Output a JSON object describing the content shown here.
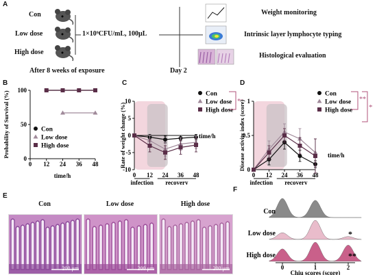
{
  "panel_a": {
    "label": "A",
    "groups": [
      "Con",
      "Low dose",
      "High dose"
    ],
    "dose_text": "1×10⁹CFU/mL, 100μL",
    "exposure_text": "After 8 weeks of exposure",
    "day_text": "Day 2",
    "assays": [
      "Weight monitoring",
      "Intrinsic layer lymphocyte typing",
      "Histological evaluation"
    ]
  },
  "panel_b": {
    "label": "B"
  },
  "panel_c": {
    "label": "C",
    "phase_labels": [
      "infection",
      "recovery"
    ]
  },
  "panel_d": {
    "label": "D",
    "phase_labels": [
      "infection",
      "recovery"
    ]
  },
  "panel_e": {
    "label": "E",
    "titles": [
      "Con",
      "Low dose",
      "High dose"
    ],
    "scale_text": "200 μm"
  },
  "panel_f": {
    "label": "F",
    "groups": [
      "Con",
      "Low dose",
      "High dose"
    ],
    "sig": [
      "",
      "*",
      "**"
    ]
  },
  "colors": {
    "con": "#111111",
    "low": "#a08a9a",
    "high": "#5a2e48",
    "infection_band": "#f3d6de",
    "recovery_band": "#c9c2c6",
    "sig_line": "#b0527a",
    "ridge_con": "#8a8a8a",
    "ridge_low": "#e9bccb",
    "ridge_high": "#c9608a"
  },
  "chart_data": [
    {
      "id": "B",
      "type": "line",
      "xlabel": "time/h",
      "ylabel": "Probability of Survival (%)",
      "xlim": [
        0,
        48
      ],
      "ylim": [
        0,
        100
      ],
      "xticks": [
        0,
        12,
        24,
        36,
        48
      ],
      "yticks": [
        0,
        50,
        100
      ],
      "legend": "bottom-left",
      "series": [
        {
          "name": "Con",
          "x": [
            12,
            24,
            36,
            48
          ],
          "y": [
            100,
            100,
            100,
            100
          ]
        },
        {
          "name": "Low dose",
          "x": [
            24,
            48
          ],
          "y": [
            67,
            67
          ]
        },
        {
          "name": "High dose",
          "x": [
            12,
            24,
            36,
            48
          ],
          "y": [
            100,
            100,
            100,
            100
          ]
        }
      ]
    },
    {
      "id": "C",
      "type": "line",
      "xlabel": "time/h",
      "ylabel": "Rate of weight change (%)",
      "xlim": [
        0,
        48
      ],
      "ylim": [
        -10,
        10
      ],
      "xticks": [
        0,
        12,
        24,
        36,
        48
      ],
      "yticks": [
        -10,
        -5,
        0,
        5,
        10
      ],
      "legend": "top-right",
      "significance": "**",
      "series": [
        {
          "name": "Con",
          "x": [
            0,
            12,
            24,
            36,
            48
          ],
          "y": [
            0,
            -0.5,
            -1.2,
            -0.8,
            -0.5
          ],
          "err": [
            0.3,
            0.8,
            1.0,
            0.8,
            0.8
          ]
        },
        {
          "name": "Low dose",
          "x": [
            0,
            12,
            24,
            36,
            48
          ],
          "y": [
            0,
            -1.5,
            -4.0,
            -2.5,
            -2.0
          ],
          "err": [
            0.3,
            1.5,
            2.0,
            1.8,
            1.8
          ]
        },
        {
          "name": "High dose",
          "x": [
            0,
            12,
            24,
            36,
            48
          ],
          "y": [
            0,
            -3.0,
            -5.0,
            -3.5,
            -2.8
          ],
          "err": [
            0.3,
            1.8,
            2.0,
            2.0,
            2.0
          ]
        }
      ]
    },
    {
      "id": "D",
      "type": "line",
      "xlabel": "time/h",
      "ylabel": "Disease activity index (score)",
      "xlim": [
        0,
        48
      ],
      "ylim": [
        0,
        1.0
      ],
      "xticks": [
        0,
        12,
        24,
        36,
        48
      ],
      "yticks": [
        0,
        0.5,
        1.0
      ],
      "legend": "top-right",
      "significance": [
        "**",
        "*"
      ],
      "series": [
        {
          "name": "Con",
          "x": [
            0,
            12,
            24,
            36,
            48
          ],
          "y": [
            0,
            0.15,
            0.4,
            0.2,
            0.08
          ],
          "err": [
            0.02,
            0.08,
            0.1,
            0.08,
            0.05
          ]
        },
        {
          "name": "Low dose",
          "x": [
            0,
            12,
            24,
            36,
            48
          ],
          "y": [
            0,
            0.3,
            0.55,
            0.45,
            0.25
          ],
          "err": [
            0.02,
            0.12,
            0.12,
            0.15,
            0.2
          ]
        },
        {
          "name": "High dose",
          "x": [
            0,
            12,
            24,
            36,
            48
          ],
          "y": [
            0,
            0.25,
            0.5,
            0.35,
            0.2
          ],
          "err": [
            0.02,
            0.1,
            0.1,
            0.12,
            0.25
          ]
        }
      ]
    },
    {
      "id": "F",
      "type": "area",
      "xlabel": "Chiu scores (score)",
      "xticks": [
        0,
        1,
        2
      ],
      "series": [
        {
          "name": "Con",
          "peaks": [
            0,
            1
          ],
          "heights": [
            1.0,
            0.9
          ]
        },
        {
          "name": "Low dose",
          "peaks": [
            0,
            1,
            2
          ],
          "heights": [
            0.35,
            1.0,
            0.15
          ]
        },
        {
          "name": "High dose",
          "peaks": [
            0,
            1,
            2
          ],
          "heights": [
            0.65,
            1.0,
            0.85
          ]
        }
      ]
    }
  ]
}
